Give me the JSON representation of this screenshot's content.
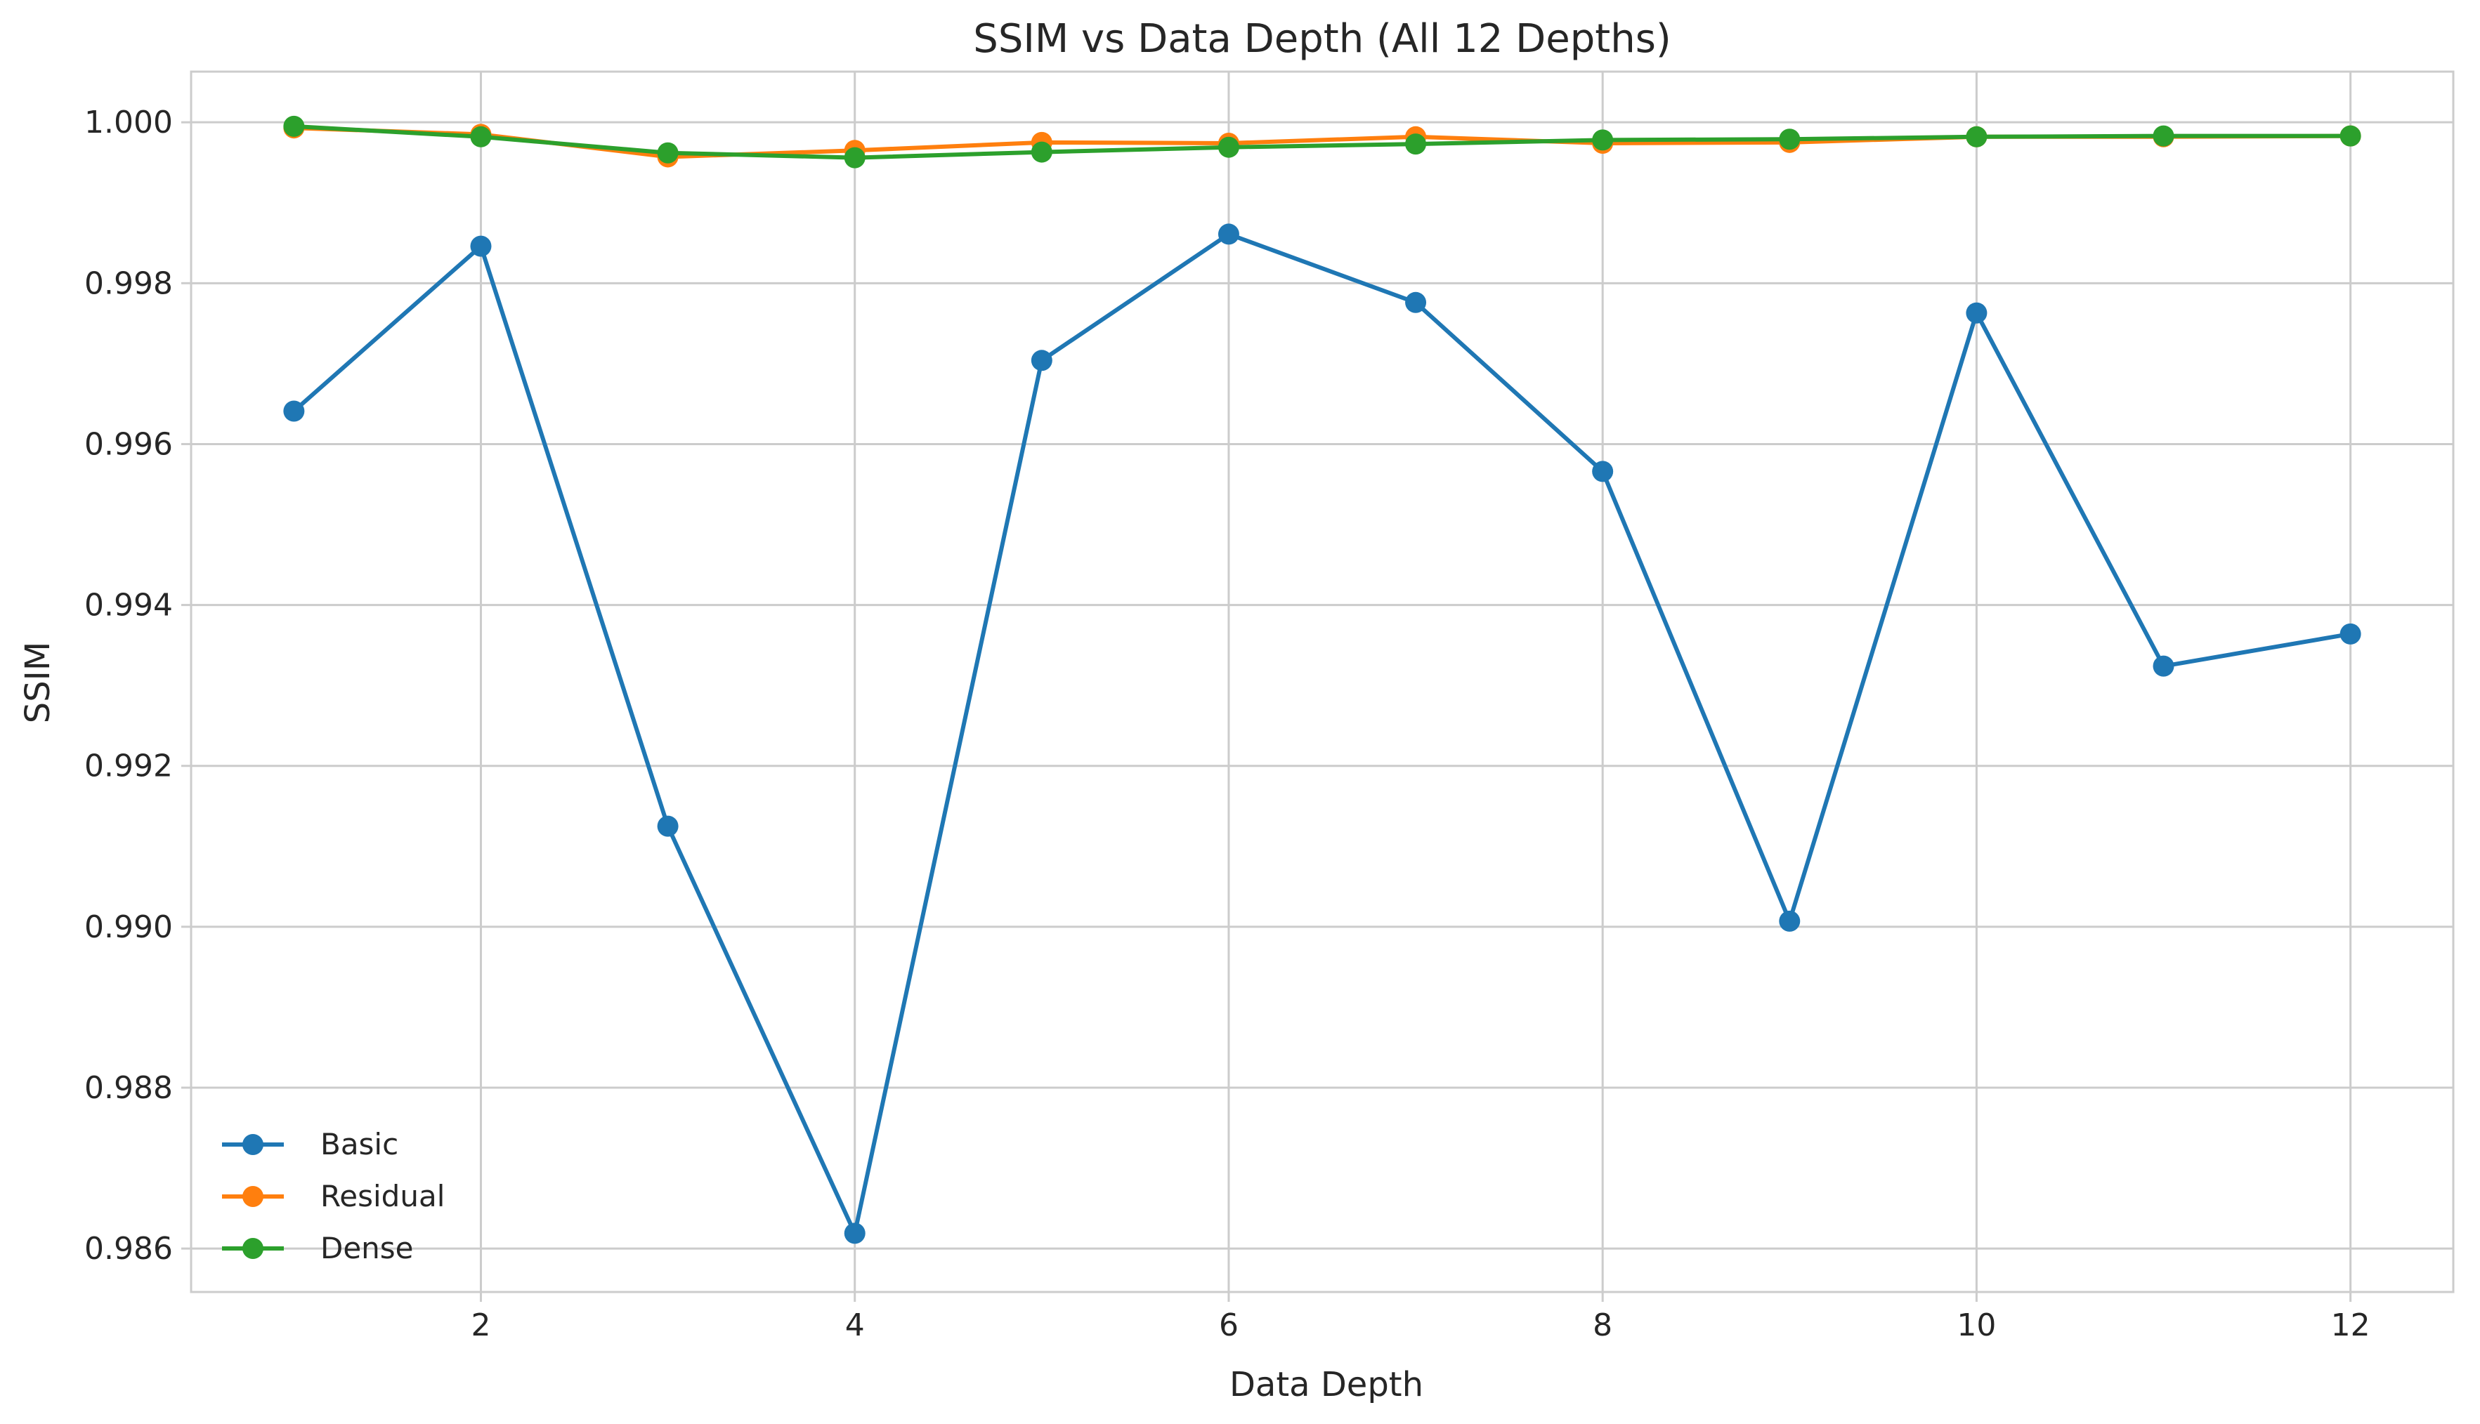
{
  "chart_data": {
    "type": "line",
    "title": "SSIM vs Data Depth (All 12 Depths)",
    "xlabel": "Data Depth",
    "ylabel": "SSIM",
    "x": [
      1,
      2,
      3,
      4,
      5,
      6,
      7,
      8,
      9,
      10,
      11,
      12
    ],
    "xlim": [
      0.45,
      12.55
    ],
    "ylim": [
      0.98546,
      1.00063
    ],
    "xticks": [
      2,
      4,
      6,
      8,
      10,
      12
    ],
    "xtick_labels": [
      "2",
      "4",
      "6",
      "8",
      "10",
      "12"
    ],
    "yticks": [
      0.986,
      0.988,
      0.99,
      0.992,
      0.994,
      0.996,
      0.998,
      1.0
    ],
    "ytick_labels": [
      "0.986",
      "0.988",
      "0.990",
      "0.992",
      "0.994",
      "0.996",
      "0.998",
      "1.000"
    ],
    "grid": true,
    "legend_position": "lower-left",
    "markers": "circle",
    "series": [
      {
        "name": "Basic",
        "color": "#1f77b4",
        "values": [
          0.99641,
          0.99846,
          0.99125,
          0.98619,
          0.99704,
          0.99861,
          0.99776,
          0.99566,
          0.99007,
          0.99763,
          0.99324,
          0.99364
        ]
      },
      {
        "name": "Residual",
        "color": "#ff7f0e",
        "values": [
          0.99993,
          0.99985,
          0.99957,
          0.99965,
          0.99975,
          0.99974,
          0.99982,
          0.99974,
          0.99975,
          0.99982,
          0.99982,
          0.99983
        ]
      },
      {
        "name": "Dense",
        "color": "#2ca02c",
        "values": [
          0.99995,
          0.99982,
          0.99962,
          0.99956,
          0.99963,
          0.99969,
          0.99973,
          0.99978,
          0.99979,
          0.99982,
          0.99983,
          0.99983
        ]
      }
    ]
  }
}
